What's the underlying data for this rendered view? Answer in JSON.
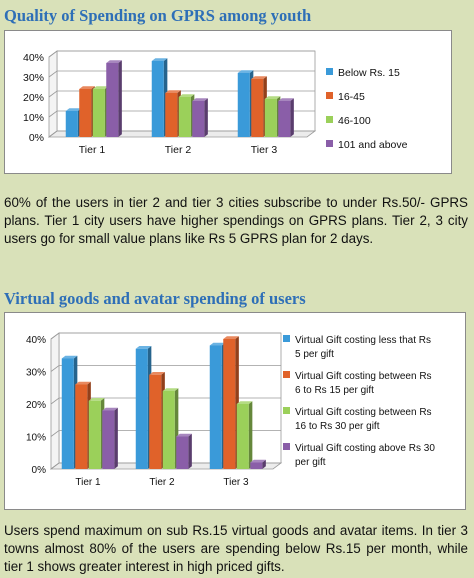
{
  "heading1": "Quality of Spending on GPRS among youth",
  "heading2": "Virtual goods and avatar spending of users",
  "para1": "60% of the users in tier 2 and tier 3 cities subscribe to under Rs.50/- GPRS plans. Tier 1 city users have higher spendings on GPRS plans. Tier 2, 3 city users go for small value plans like Rs 5 GPRS plan for 2 days.",
  "para2": "Users spend maximum on sub Rs.15 virtual goods and avatar items. In tier 3 towns almost 80% of the users are spending below Rs.15 per month, while tier 1 shows greater interest in high priced gifts.",
  "colors": {
    "blue": "#3a9ad9",
    "orange": "#e0622a",
    "green": "#9bd05a",
    "purple": "#8a5ea8"
  },
  "chart_data": [
    {
      "type": "bar",
      "title": "",
      "categories": [
        "Tier 1",
        "Tier 2",
        "Tier 3"
      ],
      "ylim": [
        0,
        40
      ],
      "yticks": [
        "0%",
        "10%",
        "20%",
        "30%",
        "40%"
      ],
      "legend_position": "right",
      "series": [
        {
          "name": "Below Rs. 15",
          "values": [
            13,
            38,
            32
          ]
        },
        {
          "name": "16-45",
          "values": [
            24,
            22,
            29
          ]
        },
        {
          "name": "46-100",
          "values": [
            24,
            20,
            19
          ]
        },
        {
          "name": "101 and above",
          "values": [
            37,
            18,
            18
          ]
        }
      ]
    },
    {
      "type": "bar",
      "title": "",
      "categories": [
        "Tier 1",
        "Tier 2",
        "Tier 3"
      ],
      "ylim": [
        0,
        40
      ],
      "yticks": [
        "0%",
        "10%",
        "20%",
        "30%",
        "40%"
      ],
      "legend_position": "right",
      "series": [
        {
          "name": "Virtual Gift costing less that Rs 5 per gift",
          "legend_lines": [
            "Virtual Gift costing less that Rs",
            "5 per gift"
          ],
          "values": [
            34,
            37,
            38
          ]
        },
        {
          "name": "Virtual Gift costing between Rs 6 to Rs 15 per gift",
          "legend_lines": [
            "Virtual Gift costing between Rs",
            "6 to Rs 15 per gift"
          ],
          "values": [
            26,
            29,
            40
          ]
        },
        {
          "name": "Virtual Gift costing between Rs 16 to Rs 30 per gift",
          "legend_lines": [
            "Virtual Gift costing between Rs",
            "16 to Rs 30 per gift"
          ],
          "values": [
            21,
            24,
            20
          ]
        },
        {
          "name": "Virtual Gift costing above Rs 30 per gift",
          "legend_lines": [
            "Virtual Gift costing above Rs 30",
            "per gift"
          ],
          "values": [
            18,
            10,
            2
          ]
        }
      ]
    }
  ]
}
